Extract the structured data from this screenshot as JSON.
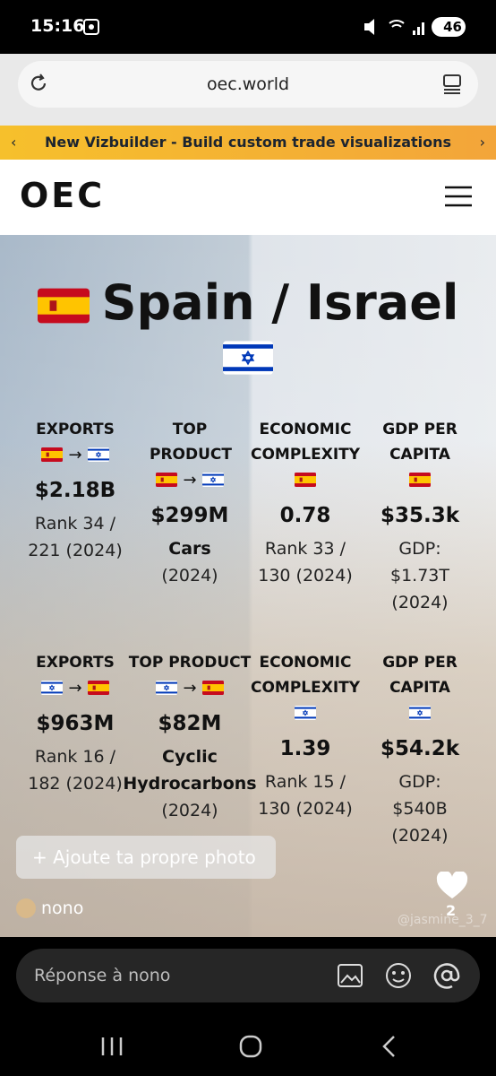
{
  "status_bar": {
    "time": "15:16",
    "battery": "46"
  },
  "browser": {
    "url": "oec.world"
  },
  "banner": {
    "text": "New Vizbuilder - Build custom trade visualizations"
  },
  "site": {
    "logo": "OEC"
  },
  "hero": {
    "title": "Spain / Israel"
  },
  "stats": [
    [
      {
        "label": "EXPORTS",
        "arrow": "→",
        "value": "$2.18B",
        "detail": "Rank 34 / 221 (2024)"
      },
      {
        "label": "TOP PRODUCT",
        "arrow": "→",
        "value": "$299M",
        "name": "Cars",
        "detail": "(2024)"
      },
      {
        "label": "ECONOMIC COMPLEXITY",
        "value": "0.78",
        "detail": "Rank 33 / 130 (2024)"
      },
      {
        "label": "GDP PER CAPITA",
        "value": "$35.3k",
        "detail": "GDP: $1.73T (2024)"
      }
    ],
    [
      {
        "label": "EXPORTS",
        "arrow": "→",
        "value": "$963M",
        "detail": "Rank 16 / 182 (2024)"
      },
      {
        "label": "TOP PRODUCT",
        "arrow": "→",
        "value": "$82M",
        "name": "Cyclic Hydrocarbons",
        "detail": "(2024)"
      },
      {
        "label": "ECONOMIC COMPLEXITY",
        "value": "1.39",
        "detail": "Rank 15 / 130 (2024)"
      },
      {
        "label": "GDP PER CAPITA",
        "value": "$54.2k",
        "detail": "GDP: $540B (2024)"
      }
    ]
  ],
  "story": {
    "add_photo": "+ Ajoute ta propre photo",
    "user": "nono",
    "likes": "2",
    "watermark": "@jasmine_3_7"
  },
  "reply": {
    "placeholder": "Réponse à nono"
  }
}
